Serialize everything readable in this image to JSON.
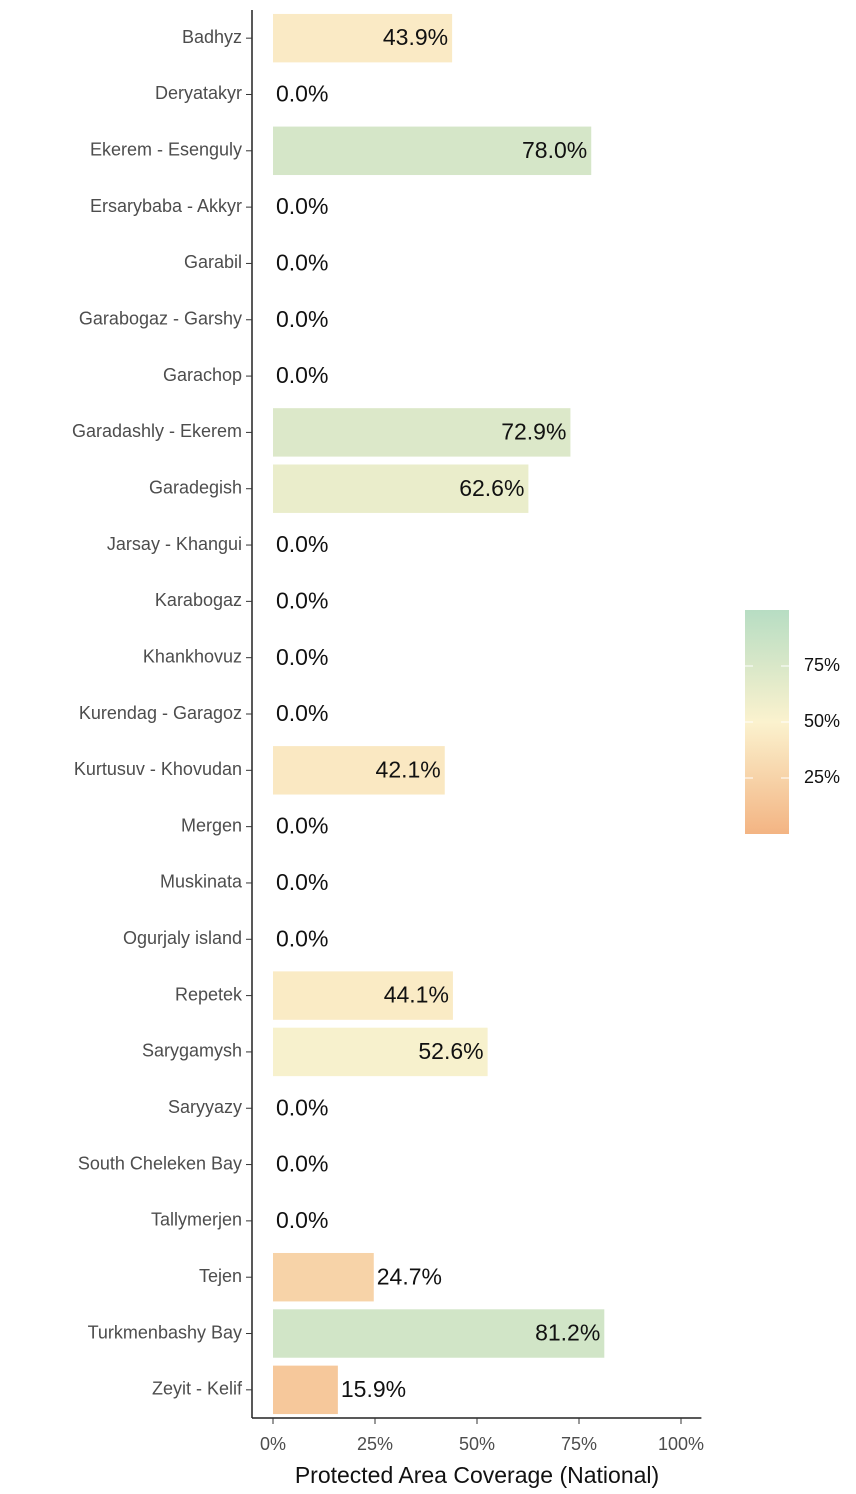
{
  "chart_data": {
    "type": "bar",
    "orientation": "horizontal",
    "x_label": "Protected Area Coverage (National)",
    "categories": [
      "Badhyz",
      "Deryatakyr",
      "Ekerem - Esenguly",
      "Ersarybaba - Akkyr",
      "Garabil",
      "Garabogaz - Garshy",
      "Garachop",
      "Garadashly - Ekerem",
      "Garadegish",
      "Jarsay - Khangui",
      "Karabogaz",
      "Khankhovuz",
      "Kurendag - Garagoz",
      "Kurtusuv - Khovudan",
      "Mergen",
      "Muskinata",
      "Ogurjaly island",
      "Repetek",
      "Sarygamysh",
      "Saryyazy",
      "South Cheleken Bay",
      "Tallymerjen",
      "Tejen",
      "Turkmenbashy Bay",
      "Zeyit - Kelif"
    ],
    "values": [
      43.9,
      0.0,
      78.0,
      0.0,
      0.0,
      0.0,
      0.0,
      72.9,
      62.6,
      0.0,
      0.0,
      0.0,
      0.0,
      42.1,
      0.0,
      0.0,
      0.0,
      44.1,
      52.6,
      0.0,
      0.0,
      0.0,
      24.7,
      81.2,
      15.9
    ],
    "value_labels": [
      "43.9%",
      "0.0%",
      "78.0%",
      "0.0%",
      "0.0%",
      "0.0%",
      "0.0%",
      "72.9%",
      "62.6%",
      "0.0%",
      "0.0%",
      "0.0%",
      "0.0%",
      "42.1%",
      "0.0%",
      "0.0%",
      "0.0%",
      "44.1%",
      "52.6%",
      "0.0%",
      "0.0%",
      "0.0%",
      "24.7%",
      "81.2%",
      "15.9%"
    ],
    "xlim": [
      -5,
      105
    ],
    "xticks": [
      {
        "value": 0,
        "label": "0%"
      },
      {
        "value": 25,
        "label": "25%"
      },
      {
        "value": 50,
        "label": "50%"
      },
      {
        "value": 75,
        "label": "75%"
      },
      {
        "value": 100,
        "label": "100%"
      }
    ],
    "colorscale": {
      "colors": [
        "#f3b483",
        "#fbf2ce",
        "#b7ddc3"
      ],
      "lim": [
        0,
        100
      ],
      "ticks": [
        {
          "value": 25,
          "label": "25%"
        },
        {
          "value": 50,
          "label": "50%"
        },
        {
          "value": 75,
          "label": "75%"
        }
      ]
    },
    "legend": "right"
  }
}
